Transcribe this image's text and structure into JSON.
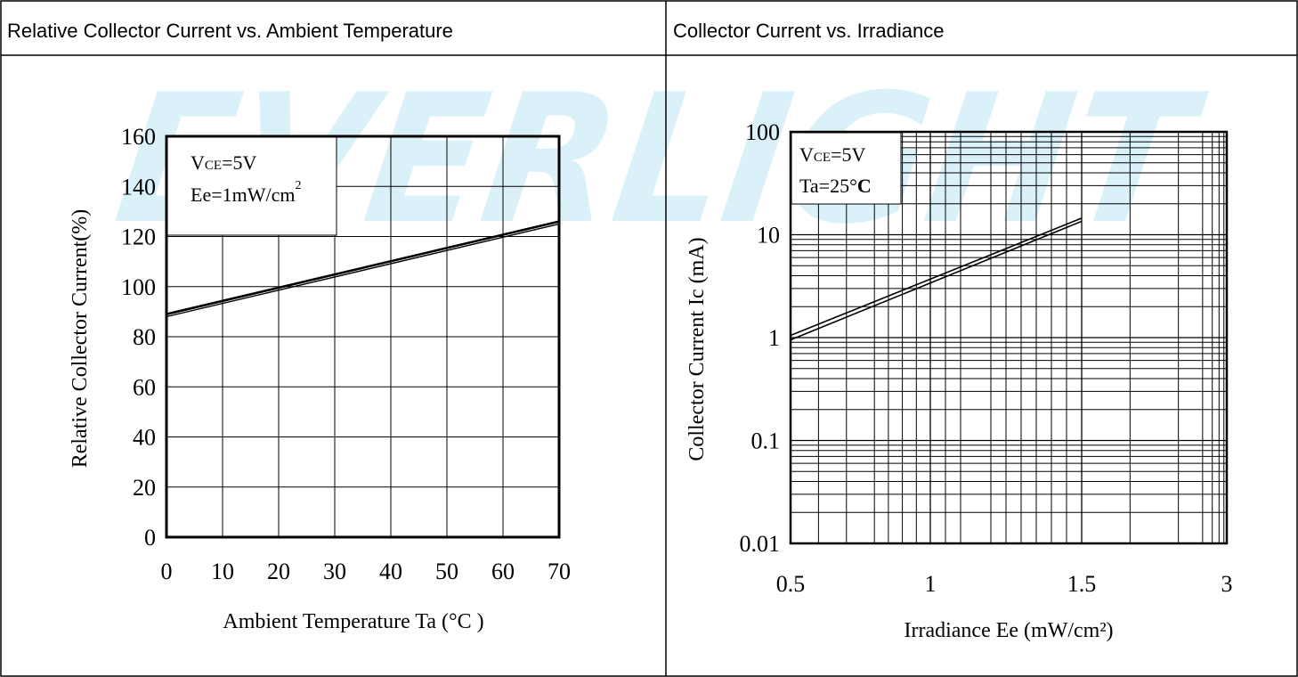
{
  "watermark": "EVERLIGHT",
  "chart_data": [
    {
      "type": "line",
      "title": "Relative Collector Current vs. Ambient Temperature",
      "xlabel": "Ambient Temperature Ta (°C )",
      "ylabel": "Relative Collector Current(%)",
      "xlim": [
        0,
        70
      ],
      "ylim": [
        0,
        160
      ],
      "x_ticks": [
        "0",
        "10",
        "20",
        "30",
        "40",
        "50",
        "60",
        "70"
      ],
      "y_ticks": [
        "0",
        "20",
        "40",
        "60",
        "80",
        "100",
        "120",
        "140",
        "160"
      ],
      "grid": true,
      "conditions": [
        "VCE=5V",
        "Ee=1mW/cm2"
      ],
      "condition_display": [
        {
          "main": "V",
          "sub": "CE",
          "rest": "=5V",
          "sup": ""
        },
        {
          "main": "Ee=1mW/cm",
          "sub": "",
          "rest": "",
          "sup": "2"
        }
      ],
      "legend_position": "top-left",
      "series": [
        {
          "x": [
            0,
            70
          ],
          "y": [
            89,
            126
          ]
        },
        {
          "x": [
            0,
            70
          ],
          "y": [
            88,
            125
          ]
        }
      ]
    },
    {
      "type": "line",
      "title": "Collector Current vs. Irradiance",
      "xlabel": "Irradiance Ee (mW/cm²)",
      "ylabel": "Collector Current Ic (mA)",
      "xlim": [
        0.5,
        3
      ],
      "ylim": [
        0.01,
        100
      ],
      "yscale": "log",
      "x_ticks": [
        "0.5",
        "1",
        "1.5",
        "3"
      ],
      "y_ticks": [
        "0.01",
        "0.1",
        "1",
        "10",
        "100"
      ],
      "grid": true,
      "conditions": [
        "VCE=5V",
        "Ta=25°C"
      ],
      "condition_display": [
        {
          "main": "V",
          "sub": "CE",
          "rest": "=5V",
          "sup": ""
        },
        {
          "main": "Ta=25°",
          "sub": "",
          "rest": "C",
          "sup": ""
        }
      ],
      "legend_position": "top-left",
      "series": [
        {
          "x": [
            0.5,
            1.5
          ],
          "y": [
            1.05,
            14.5
          ]
        },
        {
          "x": [
            0.5,
            1.5
          ],
          "y": [
            0.95,
            13.5
          ]
        }
      ]
    }
  ]
}
